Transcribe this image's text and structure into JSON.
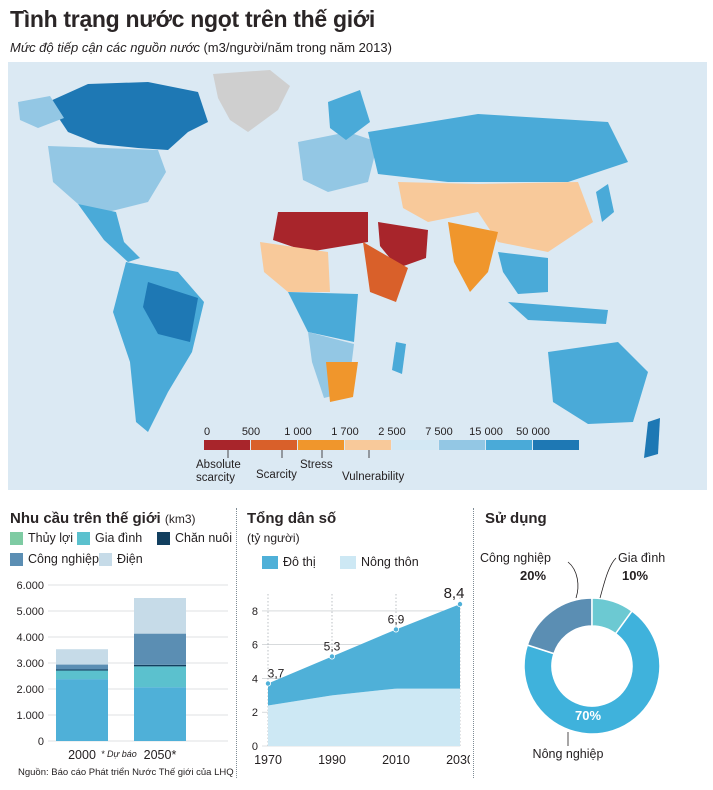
{
  "header": {
    "title": "Tình trạng nước ngọt trên thế giới",
    "subtitle_main": "Mức độ tiếp cận các nguồn nước",
    "subtitle_unit": "(m3/người/năm trong năm 2013)"
  },
  "map_legend": {
    "thresholds": [
      "0",
      "500",
      "1 000",
      "1 700",
      "2 500",
      "7 500",
      "15 000",
      "50 000"
    ],
    "colors": [
      "#a8252b",
      "#d9602a",
      "#f0962c",
      "#f8c99a",
      "#d3e8f4",
      "#93c7e4",
      "#4aaad8",
      "#1e78b4"
    ],
    "categories": [
      {
        "line1": "Absolute",
        "line2": "scarcity"
      },
      {
        "line1": "Scarcity",
        "line2": ""
      },
      {
        "line1": "Stress",
        "line2": ""
      },
      {
        "line1": "Vulnerability",
        "line2": ""
      }
    ]
  },
  "demand_panel": {
    "title": "Nhu cầu trên thế giới",
    "unit": "(km3)",
    "legend": [
      {
        "label": "Thủy lợi",
        "color": "#7ecba3"
      },
      {
        "label": "Gia đình",
        "color": "#5bc1ce"
      },
      {
        "label": "Chăn nuôi",
        "color": "#123f5f"
      },
      {
        "label": "Công nghiệp",
        "color": "#5b8eb3"
      },
      {
        "label": "Điện",
        "color": "#c6dbe8"
      }
    ],
    "forecast_note": "* Dự báo",
    "source": "Nguồn: Báo cáo Phát triển Nước Thế giới của LHQ"
  },
  "population_panel": {
    "title": "Tổng dân số",
    "unit": "(tỷ người)",
    "legend": [
      {
        "label": "Đô thị",
        "color": "#4fb0d8"
      },
      {
        "label": "Nông thôn",
        "color": "#cde8f4"
      }
    ]
  },
  "usage_panel": {
    "title": "Sử dụng",
    "labels": [
      {
        "name": "Công nghiệp",
        "pct": "20%"
      },
      {
        "name": "Gia đình",
        "pct": "10%"
      },
      {
        "name": "Nông nghiệp",
        "pct": "70%"
      }
    ]
  },
  "chart_data": [
    {
      "type": "bar",
      "stacked": true,
      "categories": [
        "2000",
        "2050*"
      ],
      "series": [
        {
          "name": "Thủy lợi",
          "color": "#4fb0d8",
          "values": [
            2380,
            2070
          ]
        },
        {
          "name": "Gia đình",
          "color": "#5bc1ce",
          "values": [
            330,
            800
          ]
        },
        {
          "name": "Chăn nuôi",
          "color": "#123f5f",
          "values": [
            40,
            60
          ]
        },
        {
          "name": "Công nghiệp",
          "color": "#5b8eb3",
          "values": [
            190,
            1200
          ]
        },
        {
          "name": "Điện",
          "color": "#c6dbe8",
          "values": [
            590,
            1370
          ]
        }
      ],
      "yticks": [
        "0",
        "1.000",
        "2.000",
        "3.000",
        "4.000",
        "5.000",
        "6.000"
      ],
      "ylim": [
        0,
        6000
      ],
      "grid": true
    },
    {
      "type": "area",
      "x": [
        1970,
        1990,
        2010,
        2030
      ],
      "xticks": [
        "1970",
        "1990",
        "2010",
        "2030"
      ],
      "series": [
        {
          "name": "Nông thôn",
          "color": "#cde8f4",
          "values": [
            2.4,
            3.0,
            3.4,
            3.4
          ]
        },
        {
          "name": "Đô thị",
          "color": "#4fb0d8",
          "values": [
            1.3,
            2.3,
            3.5,
            5.0
          ]
        }
      ],
      "totals": [
        3.7,
        5.3,
        6.9,
        8.4
      ],
      "total_labels": [
        "3,7",
        "5,3",
        "6,9",
        "8,4"
      ],
      "yticks": [
        "0",
        "2",
        "4",
        "6",
        "8"
      ],
      "ylim": [
        0,
        9
      ],
      "grid": true
    },
    {
      "type": "pie",
      "donut": true,
      "categories": [
        "Nông nghiệp",
        "Công nghiệp",
        "Gia đình"
      ],
      "values": [
        70,
        20,
        10
      ],
      "colors": [
        "#3fb2dc",
        "#5b8eb3",
        "#6cc9d2"
      ]
    }
  ]
}
